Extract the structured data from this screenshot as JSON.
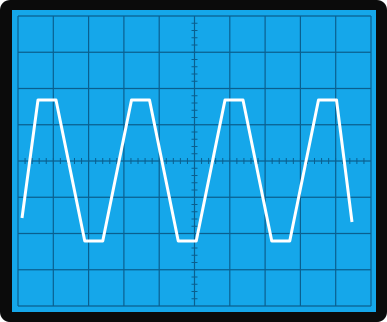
{
  "screen": {
    "background_color": "#15a7ea",
    "bezel_color": "#0b0b0b",
    "grid_color": "#0a5f8f",
    "graticule_divisions": {
      "horizontal": 10,
      "vertical": 8
    },
    "minor_ticks_per_division": 5
  },
  "trace": {
    "color": "#ffffff",
    "waveform": "clipped-triangle",
    "cycles_visible": 4
  }
}
